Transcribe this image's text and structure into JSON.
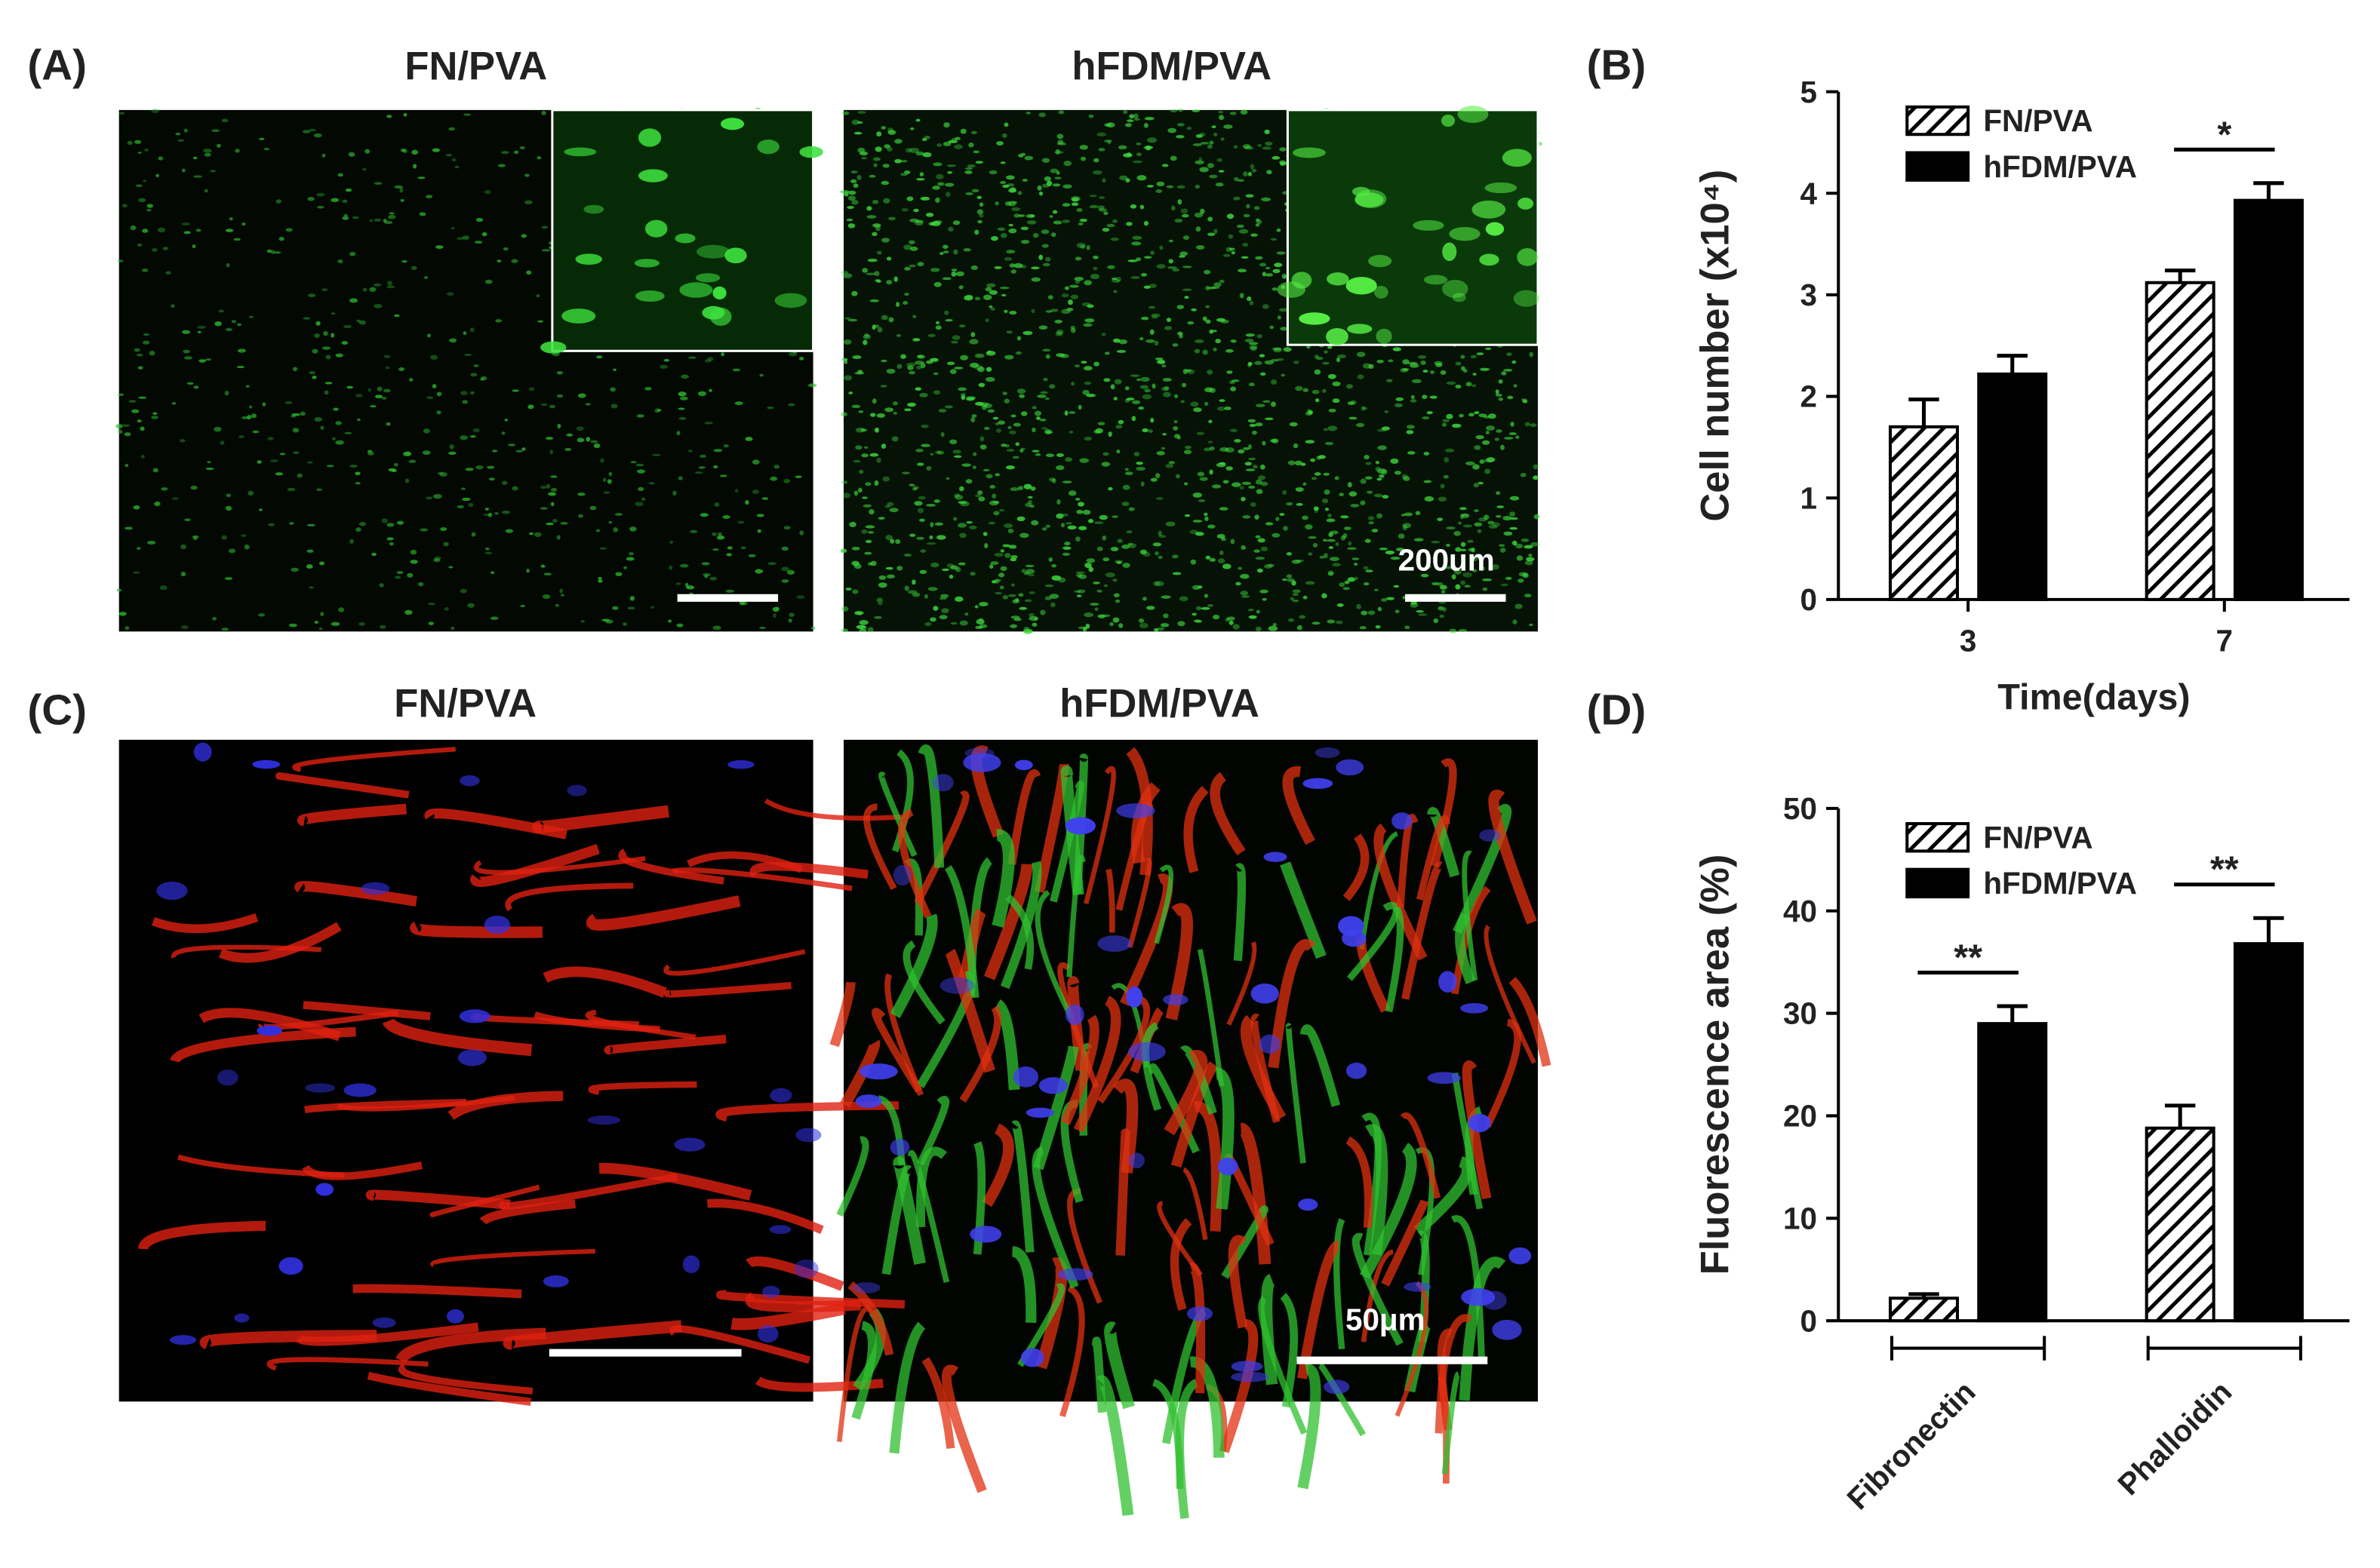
{
  "panels": {
    "a": {
      "label": "(A)",
      "left_title": "FN/PVA",
      "right_title": "hFDM/PVA",
      "scale_label": "200um"
    },
    "b": {
      "label": "(B)"
    },
    "c": {
      "label": "(C)",
      "left_title": "FN/PVA",
      "right_title": "hFDM/PVA",
      "scale_label": "50μm"
    },
    "d": {
      "label": "(D)"
    }
  },
  "chart_data": [
    {
      "type": "bar",
      "ylabel": "Cell number (x10⁴)",
      "xlabel": "Time(days)",
      "categories": [
        "3",
        "7"
      ],
      "series": [
        {
          "name": "FN/PVA",
          "color": "#ffffff",
          "pattern": "hatch",
          "values": [
            1.7,
            3.12
          ],
          "errors": [
            0.27,
            0.12
          ]
        },
        {
          "name": "hFDM/PVA",
          "color": "#000000",
          "values": [
            2.22,
            3.93
          ],
          "errors": [
            0.18,
            0.17
          ]
        }
      ],
      "ylim": [
        0,
        5
      ],
      "yticks": [
        0,
        1,
        2,
        3,
        4,
        5
      ],
      "legend": "upper-left",
      "annotations": [
        {
          "text": "*",
          "category": 1
        }
      ]
    },
    {
      "type": "bar",
      "ylabel": "Fluorescence area (%)",
      "categories": [
        "Fibronectin",
        "Phalloidin"
      ],
      "series": [
        {
          "name": "FN/PVA",
          "color": "#ffffff",
          "pattern": "hatch",
          "values": [
            2.2,
            18.8
          ],
          "errors": [
            0.4,
            2.2
          ]
        },
        {
          "name": "hFDM/PVA",
          "color": "#000000",
          "values": [
            29,
            36.8
          ],
          "errors": [
            1.7,
            2.5
          ]
        }
      ],
      "ylim": [
        0,
        50
      ],
      "yticks": [
        0,
        10,
        20,
        30,
        40,
        50
      ],
      "legend": "upper-left",
      "annotations": [
        {
          "text": "**",
          "category": 0
        },
        {
          "text": "**",
          "category": 1
        }
      ]
    }
  ]
}
